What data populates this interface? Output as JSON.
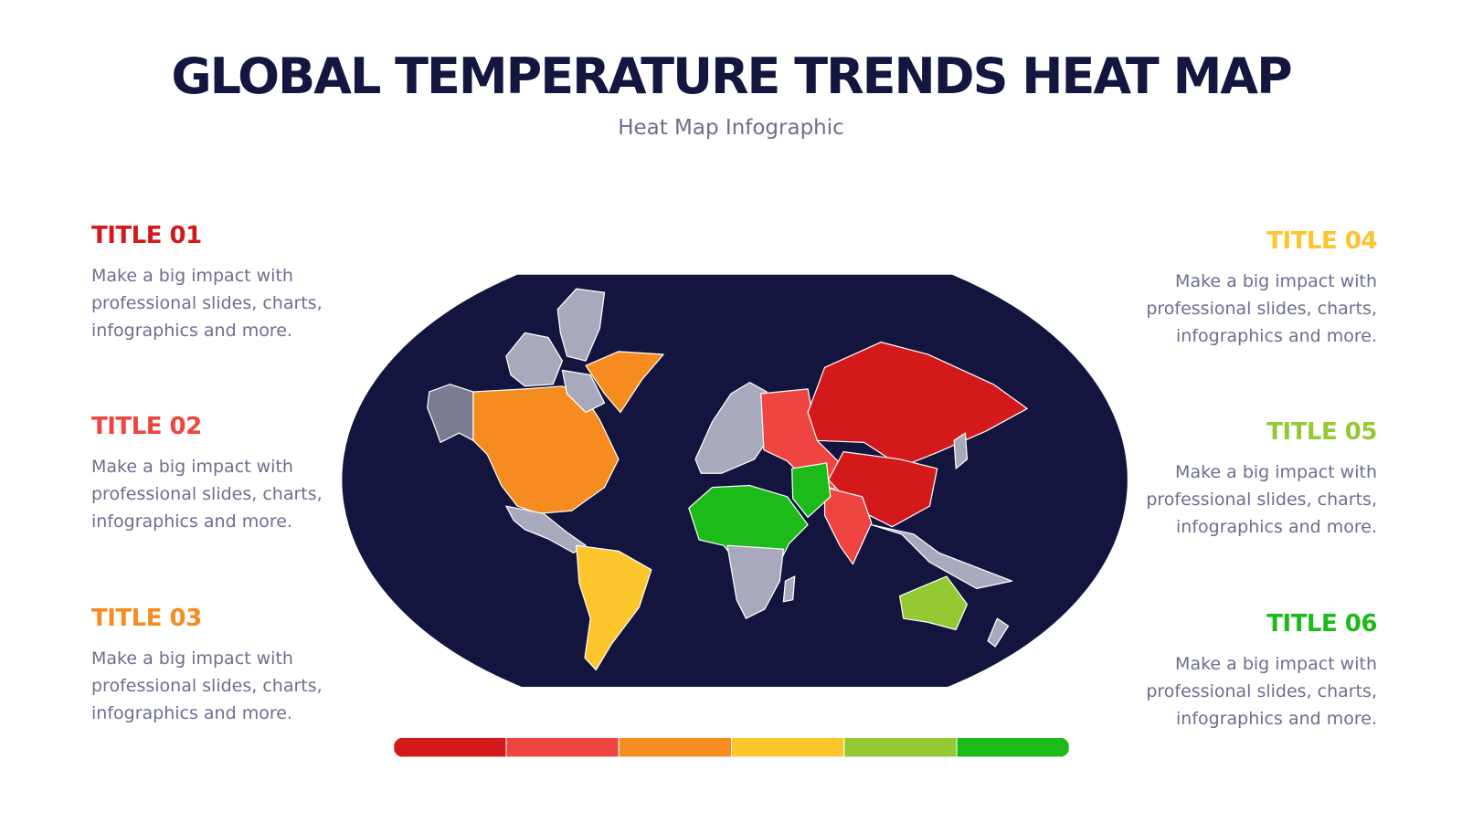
{
  "header": {
    "title": "GLOBAL TEMPERATURE TRENDS HEAT MAP",
    "subtitle": "Heat Map Infographic"
  },
  "items": [
    {
      "title": "TITLE 01",
      "text": "Make a big impact with professional slides, charts, infographics and more.",
      "color": "#d3191a"
    },
    {
      "title": "TITLE 02",
      "text": "Make a big impact with professional slides, charts, infographics and more.",
      "color": "#ee4540"
    },
    {
      "title": "TITLE 03",
      "text": "Make a big impact with professional slides, charts, infographics and more.",
      "color": "#f68b1f"
    },
    {
      "title": "TITLE 04",
      "text": "Make a big impact with professional slides, charts, infographics and more.",
      "color": "#fdc52c"
    },
    {
      "title": "TITLE 05",
      "text": "Make a big impact with professional slides, charts, infographics and more.",
      "color": "#95c934"
    },
    {
      "title": "TITLE 06",
      "text": "Make a big impact with professional slides, charts, infographics and more.",
      "color": "#1cbb1a"
    }
  ]
}
